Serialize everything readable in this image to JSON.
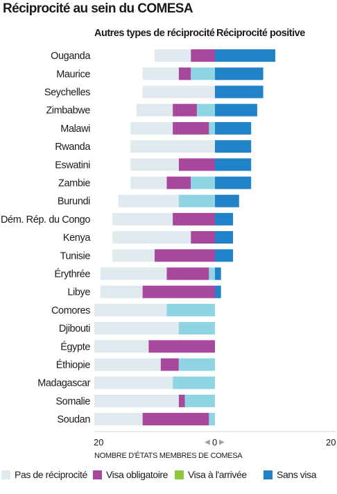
{
  "title": "Réciprocité au sein du COMESA",
  "left_header": "Autres types de réciprocité",
  "right_header": "Réciprocité positive",
  "axis_ticks": {
    "left": "20",
    "center": "0",
    "right": "20"
  },
  "axis_title": "NOMBRE D'ÉTATS MEMBRES DE COMESA",
  "colors": {
    "pas_reciprocite": "#dfe9ee",
    "visa_obligatoire": "#a8489d",
    "visa_arrivee": "#8dc63f",
    "visa_arrivee_bar": "#8ed4e3",
    "sans_visa": "#2182c7"
  },
  "legend": [
    {
      "label": "Pas de réciprocité",
      "color_key": "pas_reciprocite"
    },
    {
      "label": "Visa obligatoire",
      "color_key": "visa_obligatoire"
    },
    {
      "label": "Visa à l'arrivée",
      "color_key": "visa_arrivee"
    },
    {
      "label": "Sans visa",
      "color_key": "sans_visa"
    }
  ],
  "chart_data": {
    "type": "bar",
    "orientation": "horizontal-diverging",
    "xlabel": "NOMBRE D'ÉTATS MEMBRES DE COMESA",
    "xlim_left": [
      0,
      20
    ],
    "xlim_right": [
      0,
      20
    ],
    "series_left": [
      "pas_reciprocite",
      "visa_obligatoire",
      "visa_arrivee"
    ],
    "series_right": [
      "sans_visa"
    ],
    "rows": [
      {
        "country": "Ouganda",
        "pas_reciprocite": 6,
        "visa_obligatoire": 4,
        "visa_arrivee": 0,
        "sans_visa": 10
      },
      {
        "country": "Maurice",
        "pas_reciprocite": 6,
        "visa_obligatoire": 2,
        "visa_arrivee": 4,
        "sans_visa": 8
      },
      {
        "country": "Seychelles",
        "pas_reciprocite": 12,
        "visa_obligatoire": 0,
        "visa_arrivee": 0,
        "sans_visa": 8
      },
      {
        "country": "Zimbabwe",
        "pas_reciprocite": 6,
        "visa_obligatoire": 4,
        "visa_arrivee": 3,
        "sans_visa": 7
      },
      {
        "country": "Malawi",
        "pas_reciprocite": 7,
        "visa_obligatoire": 6,
        "visa_arrivee": 1,
        "sans_visa": 6
      },
      {
        "country": "Rwanda",
        "pas_reciprocite": 14,
        "visa_obligatoire": 0,
        "visa_arrivee": 0,
        "sans_visa": 6
      },
      {
        "country": "Eswatini",
        "pas_reciprocite": 8,
        "visa_obligatoire": 6,
        "visa_arrivee": 0,
        "sans_visa": 6
      },
      {
        "country": "Zambie",
        "pas_reciprocite": 6,
        "visa_obligatoire": 4,
        "visa_arrivee": 4,
        "sans_visa": 6
      },
      {
        "country": "Burundi",
        "pas_reciprocite": 10,
        "visa_obligatoire": 0,
        "visa_arrivee": 6,
        "sans_visa": 4
      },
      {
        "country": "Dém. Rép. du Congo",
        "pas_reciprocite": 10,
        "visa_obligatoire": 7,
        "visa_arrivee": 0,
        "sans_visa": 3
      },
      {
        "country": "Kenya",
        "pas_reciprocite": 13,
        "visa_obligatoire": 4,
        "visa_arrivee": 0,
        "sans_visa": 3
      },
      {
        "country": "Tunisie",
        "pas_reciprocite": 7,
        "visa_obligatoire": 10,
        "visa_arrivee": 0,
        "sans_visa": 3
      },
      {
        "country": "Érythrée",
        "pas_reciprocite": 11,
        "visa_obligatoire": 7,
        "visa_arrivee": 1,
        "sans_visa": 1
      },
      {
        "country": "Libye",
        "pas_reciprocite": 7,
        "visa_obligatoire": 12,
        "visa_arrivee": 0,
        "sans_visa": 1
      },
      {
        "country": "Comores",
        "pas_reciprocite": 12,
        "visa_obligatoire": 0,
        "visa_arrivee": 8,
        "sans_visa": 0
      },
      {
        "country": "Djibouti",
        "pas_reciprocite": 14,
        "visa_obligatoire": 0,
        "visa_arrivee": 6,
        "sans_visa": 0
      },
      {
        "country": "Égypte",
        "pas_reciprocite": 9,
        "visa_obligatoire": 11,
        "visa_arrivee": 0,
        "sans_visa": 0
      },
      {
        "country": "Éthiopie",
        "pas_reciprocite": 11,
        "visa_obligatoire": 3,
        "visa_arrivee": 6,
        "sans_visa": 0
      },
      {
        "country": "Madagascar",
        "pas_reciprocite": 13,
        "visa_obligatoire": 0,
        "visa_arrivee": 7,
        "sans_visa": 0
      },
      {
        "country": "Somalie",
        "pas_reciprocite": 14,
        "visa_obligatoire": 1,
        "visa_arrivee": 5,
        "sans_visa": 0
      },
      {
        "country": "Soudan",
        "pas_reciprocite": 8,
        "visa_obligatoire": 11,
        "visa_arrivee": 1,
        "sans_visa": 0
      }
    ]
  }
}
